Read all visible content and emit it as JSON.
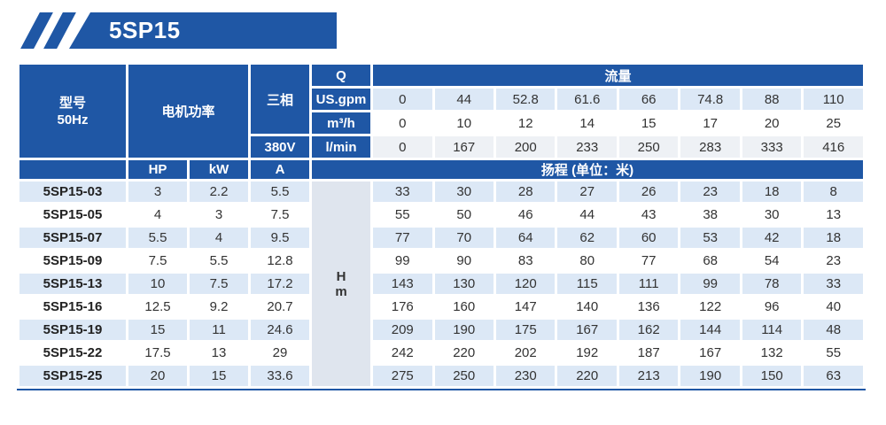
{
  "banner": {
    "title": "5SP15"
  },
  "colors": {
    "primary_blue": "#1f57a5",
    "light_blue_row": "#dce8f6",
    "light_gray_row": "#eef1f5",
    "hm_cell_bg": "#dfe5ee",
    "text_dark": "#333333"
  },
  "table": {
    "header": {
      "model_label": "型号",
      "freq_label": "50Hz",
      "motor_power_label": "电机功率",
      "phase_label": "三相",
      "voltage": "380V",
      "q_label": "Q",
      "flow_label": "流量",
      "head_label": "扬程 (单位：米)",
      "hp_label": "HP",
      "kw_label": "kW",
      "amp_label": "A",
      "head_symbol": "H",
      "head_unit": "m",
      "flow_units": [
        "US.gpm",
        "m³/h",
        "l/min"
      ],
      "flow_values": {
        "us_gpm": [
          0,
          44,
          52.8,
          61.6,
          66,
          74.8,
          88,
          110
        ],
        "m3_h": [
          0,
          10,
          12,
          14,
          15,
          17,
          20,
          25
        ],
        "l_min": [
          0,
          167,
          200,
          233,
          250,
          283,
          333,
          416
        ]
      }
    },
    "rows": [
      {
        "model": "5SP15-03",
        "hp": "3",
        "kw": "2.2",
        "a": "5.5",
        "head": [
          33,
          30,
          28,
          27,
          26,
          23,
          18,
          8
        ]
      },
      {
        "model": "5SP15-05",
        "hp": "4",
        "kw": "3",
        "a": "7.5",
        "head": [
          55,
          50,
          46,
          44,
          43,
          38,
          30,
          13
        ]
      },
      {
        "model": "5SP15-07",
        "hp": "5.5",
        "kw": "4",
        "a": "9.5",
        "head": [
          77,
          70,
          64,
          62,
          60,
          53,
          42,
          18
        ]
      },
      {
        "model": "5SP15-09",
        "hp": "7.5",
        "kw": "5.5",
        "a": "12.8",
        "head": [
          99,
          90,
          83,
          80,
          77,
          68,
          54,
          23
        ]
      },
      {
        "model": "5SP15-13",
        "hp": "10",
        "kw": "7.5",
        "a": "17.2",
        "head": [
          143,
          130,
          120,
          115,
          111,
          99,
          78,
          33
        ]
      },
      {
        "model": "5SP15-16",
        "hp": "12.5",
        "kw": "9.2",
        "a": "20.7",
        "head": [
          176,
          160,
          147,
          140,
          136,
          122,
          96,
          40
        ]
      },
      {
        "model": "5SP15-19",
        "hp": "15",
        "kw": "11",
        "a": "24.6",
        "head": [
          209,
          190,
          175,
          167,
          162,
          144,
          114,
          48
        ]
      },
      {
        "model": "5SP15-22",
        "hp": "17.5",
        "kw": "13",
        "a": "29",
        "head": [
          242,
          220,
          202,
          192,
          187,
          167,
          132,
          55
        ]
      },
      {
        "model": "5SP15-25",
        "hp": "20",
        "kw": "15",
        "a": "33.6",
        "head": [
          275,
          250,
          230,
          220,
          213,
          190,
          150,
          63
        ]
      }
    ]
  }
}
